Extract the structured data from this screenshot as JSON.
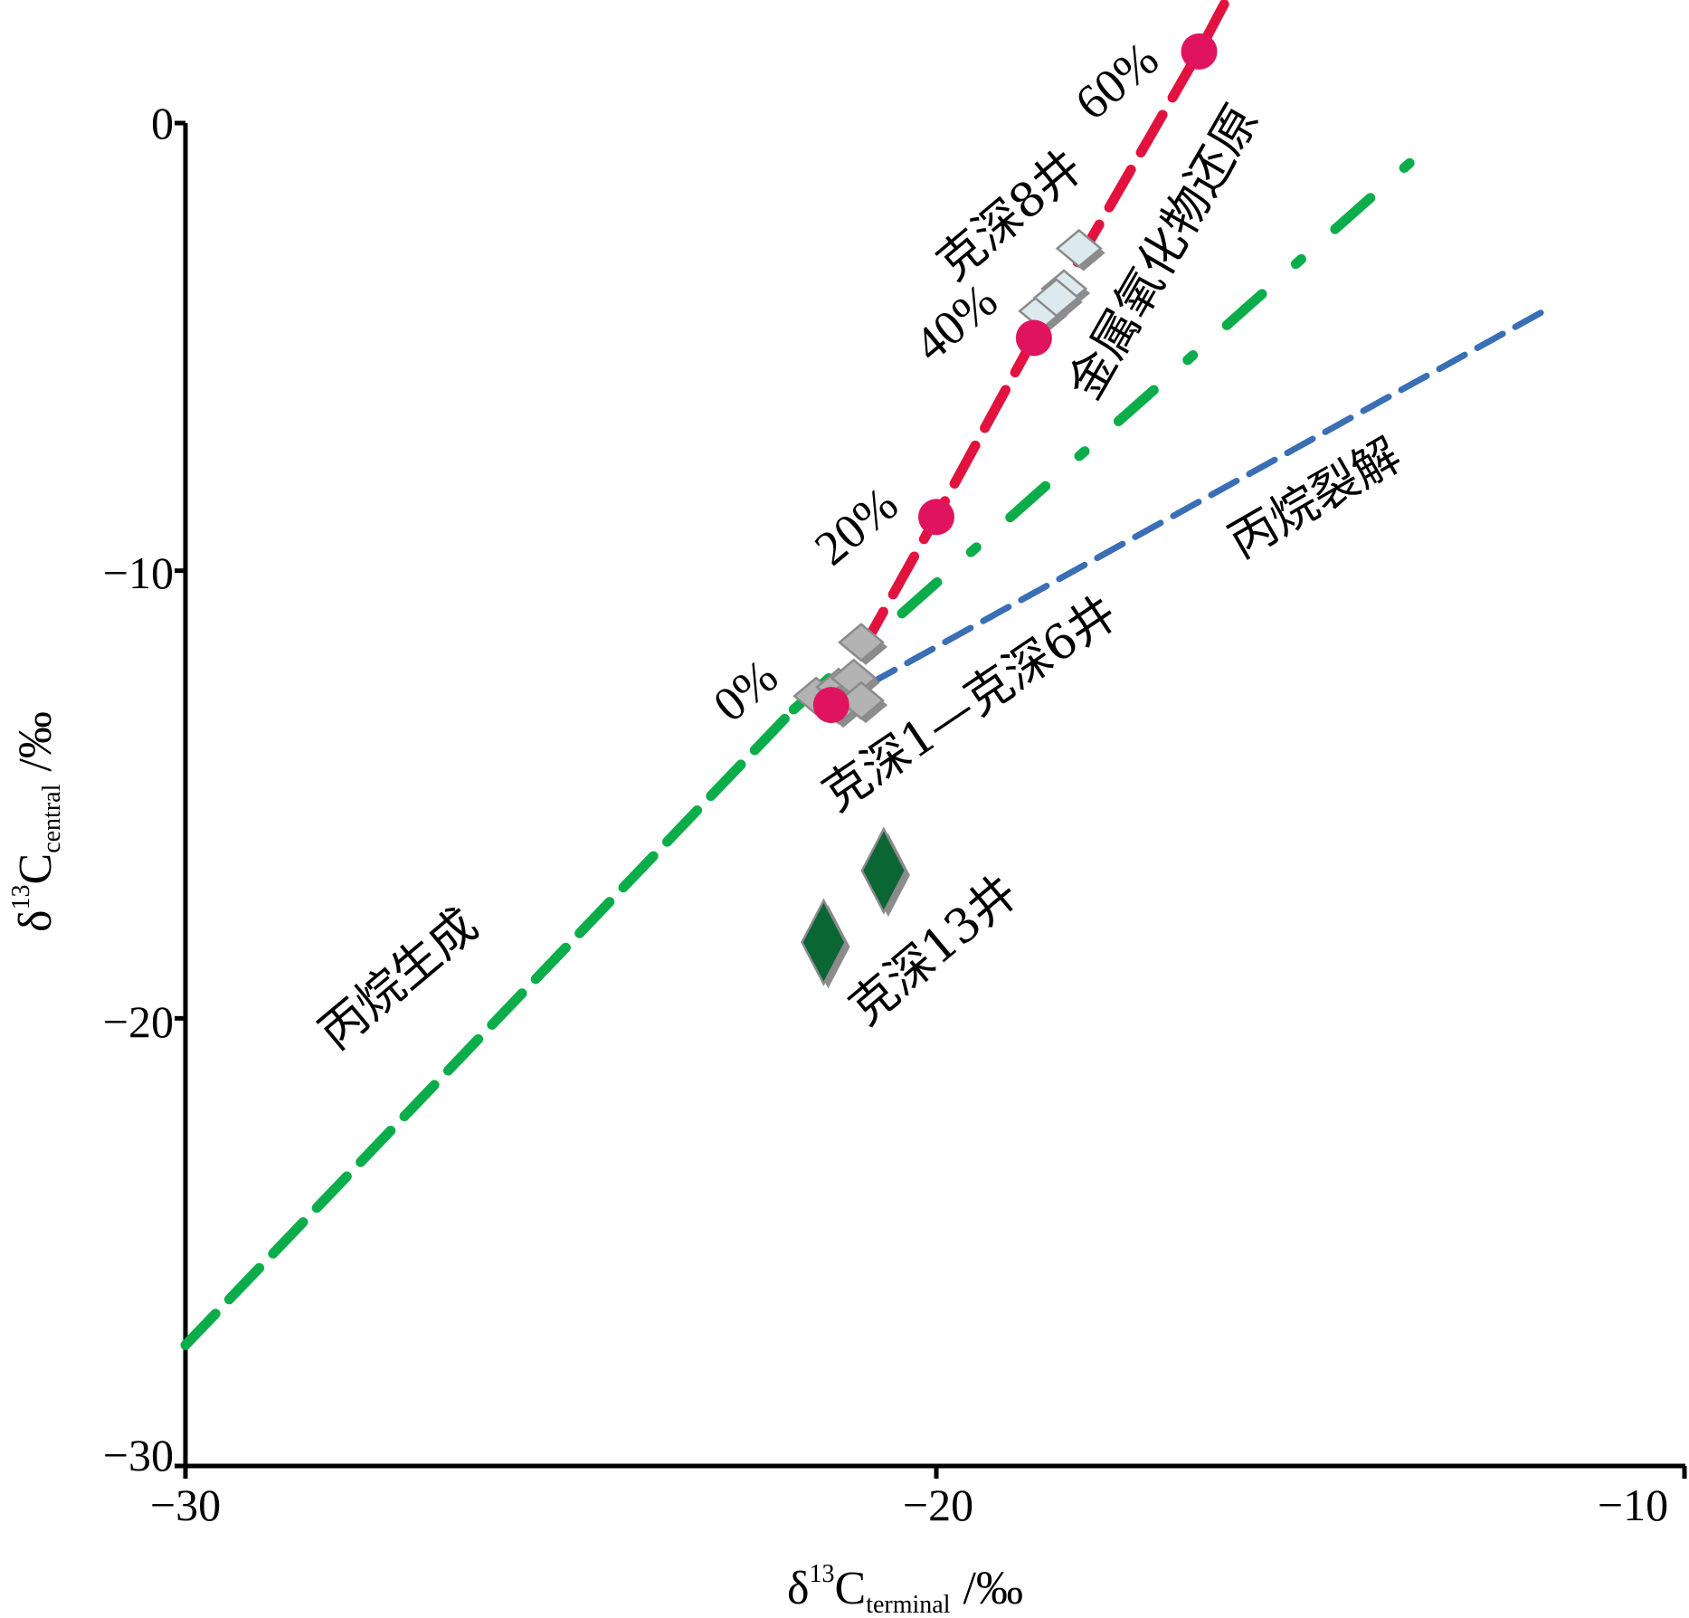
{
  "chart_data": {
    "type": "scatter",
    "title": "",
    "xlabel": "δ13Cterminal /‰",
    "ylabel": "δ13Ccentral /‰",
    "xlabel_parts": {
      "prefix": "δ",
      "sup": "13",
      "main": "C",
      "sub": "terminal",
      "unit": "/‰"
    },
    "ylabel_parts": {
      "prefix": "δ",
      "sup": "13",
      "main": "C",
      "sub": "central",
      "unit": "/‰"
    },
    "xlim": [
      -30,
      -10
    ],
    "ylim": [
      -30,
      0
    ],
    "x_ticks": [
      -30,
      -20,
      -10
    ],
    "y_ticks": [
      0,
      -10,
      -20,
      -30
    ],
    "x_tick_labels": [
      "−30",
      "−20",
      "−10"
    ],
    "y_tick_labels": [
      "0",
      "−10",
      "−20",
      "−30"
    ],
    "grid": false,
    "lines": [
      {
        "name": "丙烷生成",
        "style": "dashed",
        "color": "#0aad4a",
        "points": [
          [
            -30,
            -27.3
          ],
          [
            -21.9,
            -13.1
          ]
        ]
      },
      {
        "name": "丙烷生成-extension",
        "style": "dash-dot",
        "color": "#0aad4a",
        "points": [
          [
            -21.9,
            -13.1
          ],
          [
            -13.5,
            -0.6
          ]
        ]
      },
      {
        "name": "丙烷裂解",
        "style": "dashed",
        "color": "#3a6fb5",
        "points": [
          [
            -21.4,
            -13.0
          ],
          [
            -11.8,
            -4.1
          ]
        ]
      },
      {
        "name": "金属氧化物还原",
        "style": "dashed",
        "color": "#e2123f",
        "points": [
          [
            -21.4,
            -13.0
          ],
          [
            -20.0,
            -8.8
          ],
          [
            -18.7,
            -4.8
          ],
          [
            -16.5,
            1.6
          ],
          [
            -15.9,
            3.5
          ]
        ]
      }
    ],
    "mixing_points": {
      "color": "#e0135e",
      "points": [
        {
          "x": -21.4,
          "y": -13.0,
          "label": "0%"
        },
        {
          "x": -20.0,
          "y": -8.8,
          "label": "20%"
        },
        {
          "x": -18.7,
          "y": -4.8,
          "label": "40%"
        },
        {
          "x": -16.5,
          "y": 1.6,
          "label": "60%"
        }
      ]
    },
    "series": [
      {
        "name": "克深1—克深6井",
        "marker": "diamond",
        "color": "#b3b3b3",
        "points": [
          [
            -21.6,
            -12.8
          ],
          [
            -21.3,
            -12.6
          ],
          [
            -21.1,
            -12.4
          ],
          [
            -21.0,
            -11.6
          ],
          [
            -21.3,
            -13.0
          ],
          [
            -21.0,
            -12.9
          ]
        ]
      },
      {
        "name": "克深8井",
        "marker": "diamond",
        "color": "#dce9ef",
        "points": [
          [
            -18.6,
            -4.2
          ],
          [
            -18.3,
            -3.7
          ],
          [
            -18.1,
            -2.8
          ],
          [
            -18.4,
            -3.9
          ]
        ]
      },
      {
        "name": "克深13井",
        "marker": "diamond",
        "color": "#0a6633",
        "points": [
          [
            -20.7,
            -16.7
          ],
          [
            -21.5,
            -18.3
          ]
        ]
      }
    ],
    "annotations": {
      "propane_generation": "丙烷生成",
      "propane_cracking": "丙烷裂解",
      "metal_oxide_reduction": "金属氧化物还原",
      "well_ks8": "克深8井",
      "well_ks1_6": "克深1—克深6井",
      "well_ks13": "克深13井"
    }
  }
}
